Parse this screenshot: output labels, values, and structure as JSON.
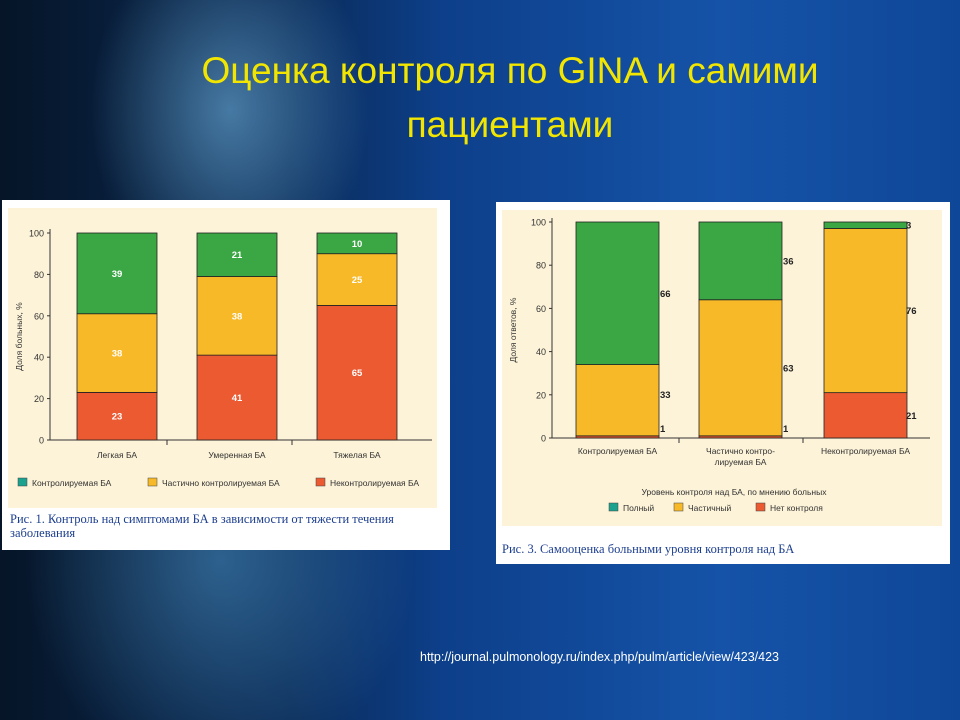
{
  "slide": {
    "title_line1": "Оценка контроля по GINA и самими",
    "title_line2": "пациентами",
    "url": "http://journal.pulmonology.ru/index.php/pulm/article/view/423/423"
  },
  "colors": {
    "green": "#3aa644",
    "yellow": "#f7b928",
    "red": "#ec5a32",
    "teal": "#1aa28e"
  },
  "chart_data": [
    {
      "type": "bar",
      "stacked": true,
      "categories": [
        "Легкая БА",
        "Умеренная БА",
        "Тяжелая БА"
      ],
      "series": [
        {
          "name": "Неконтролируемая БА",
          "values": [
            23,
            41,
            65
          ]
        },
        {
          "name": "Частично контролируемая БА",
          "values": [
            38,
            38,
            25
          ]
        },
        {
          "name": "Контролируемая БА",
          "values": [
            39,
            21,
            10
          ]
        }
      ],
      "ylabel": "Доля больных, %",
      "ylim": [
        0,
        100
      ],
      "yticks": [
        "0",
        "20",
        "40",
        "60",
        "80",
        "100"
      ],
      "legend_position": "bottom",
      "legend": [
        "Контролируемая БА",
        "Частично контролируемая БА",
        "Неконтролируемая БА"
      ],
      "caption": "Рис. 1. Контроль над симптомами БА в зависимости от тяжести течения заболевания"
    },
    {
      "type": "bar",
      "stacked": true,
      "categories": [
        "Контролируемая БА",
        "Частично контро- лируемая БА",
        "Неконтролируемая БА"
      ],
      "series": [
        {
          "name": "Нет контроля",
          "values": [
            1,
            1,
            21
          ]
        },
        {
          "name": "Частичный",
          "values": [
            33,
            63,
            76
          ]
        },
        {
          "name": "Полный",
          "values": [
            66,
            36,
            3
          ]
        }
      ],
      "ylabel": "Доля ответов, %",
      "xlabel": "Уровень контроля над БА, по мнению больных",
      "ylim": [
        0,
        100
      ],
      "yticks": [
        "0",
        "20",
        "40",
        "60",
        "80",
        "100"
      ],
      "legend_position": "bottom",
      "legend": [
        "Полный",
        "Частичный",
        "Нет контроля"
      ],
      "caption": "Рис. 3. Самооценка больными уровня контроля над БА"
    }
  ]
}
